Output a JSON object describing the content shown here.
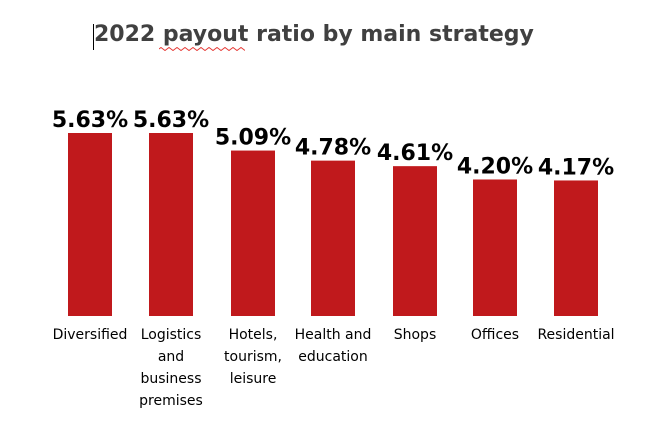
{
  "chart_data": {
    "type": "bar",
    "title": "2022 payout ratio by main strategy",
    "categories": [
      [
        "Diversified"
      ],
      [
        "Logistics",
        "and",
        "business",
        "premises"
      ],
      [
        "Hotels,",
        "tourism,",
        "leisure"
      ],
      [
        "Health and",
        "education"
      ],
      [
        "Shops"
      ],
      [
        "Offices"
      ],
      [
        "Residential"
      ]
    ],
    "values": [
      5.63,
      5.63,
      5.09,
      4.78,
      4.61,
      4.2,
      4.17
    ],
    "data_labels": [
      "5.63%",
      "5.63%",
      "5.09%",
      "4.78%",
      "4.61%",
      "4.20%",
      "4.17%"
    ],
    "ylim": [
      0,
      5.63
    ],
    "grid": false,
    "legend": "none",
    "colors": {
      "bar": "#C0191C",
      "title": "#404040",
      "label": "#000000",
      "spellcheck": "#E53935"
    }
  }
}
